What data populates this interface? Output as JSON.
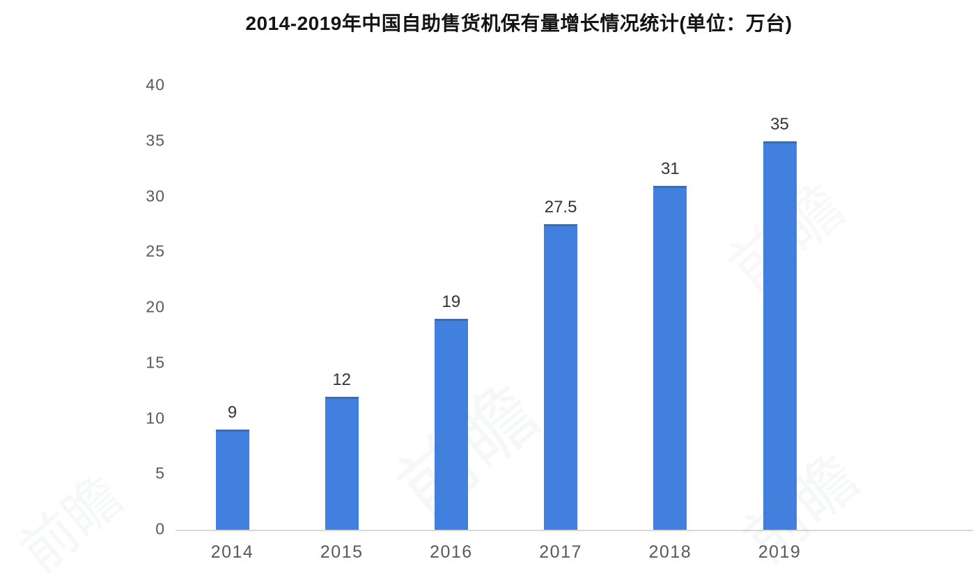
{
  "title": "2014-2019年中国自助售货机保有量增长情况统计(单位：万台)",
  "watermark": {
    "text": "前瞻"
  },
  "chart_data": {
    "type": "bar",
    "title": "2014-2019年中国自助售货机保有量增长情况统计(单位：万台)",
    "unit": "万台",
    "categories": [
      "2014",
      "2015",
      "2016",
      "2017",
      "2018",
      "2019"
    ],
    "values": [
      9,
      12,
      19,
      27.5,
      31,
      35
    ],
    "value_labels": [
      "9",
      "12",
      "19",
      "27.5",
      "31",
      "35"
    ],
    "xlabel": "",
    "ylabel": "",
    "ylim": [
      0,
      40
    ],
    "yticks": [
      0,
      5,
      10,
      15,
      20,
      25,
      30,
      35,
      40
    ],
    "grid": false,
    "legend_position": "none",
    "bar_color": "#4180df",
    "axis_line_color": "#d9d9d9",
    "tick_label_color": "#595959",
    "value_label_color": "#333333",
    "title_color": "#141414",
    "background_color": "#ffffff"
  }
}
